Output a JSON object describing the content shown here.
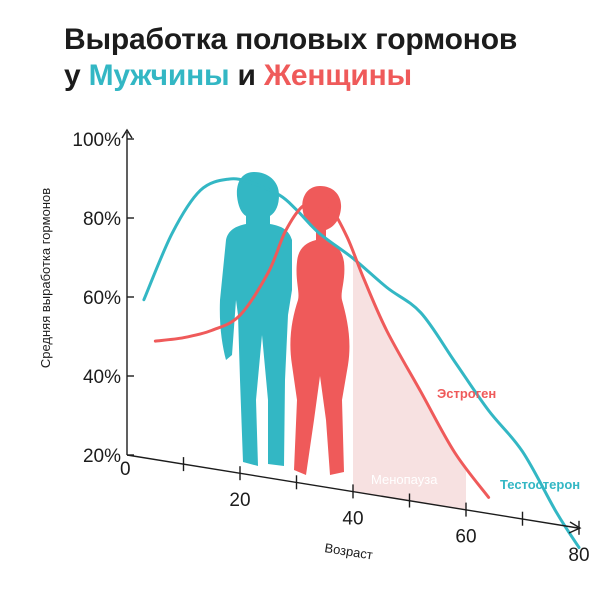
{
  "header": {
    "title_line1": "Выработка половых гормонов",
    "title_prefix": "у",
    "title_male": "Мужчины",
    "title_conj": "и",
    "title_female": "Женщины"
  },
  "colors": {
    "male": "#33b7c4",
    "female": "#ef5a5a",
    "menopause_fill": "#f6dede",
    "axis": "#1c1c1c"
  },
  "icons": [
    "male-silhouette-icon",
    "female-silhouette-icon"
  ],
  "chart_data": {
    "type": "line",
    "ylabel": "Средняя выработка гормонов",
    "xlabel": "Возраст",
    "y_ticks": [
      "20%",
      "40%",
      "60%",
      "80%",
      "100%"
    ],
    "y_tick_values": [
      20,
      40,
      60,
      80,
      100
    ],
    "x_ticks": [
      "20",
      "40",
      "60",
      "80"
    ],
    "x_tick_values": [
      20,
      40,
      60,
      80
    ],
    "origin_label": "0",
    "xlim": [
      0,
      80
    ],
    "ylim": [
      20,
      100
    ],
    "series": [
      {
        "name": "Тестостерон",
        "color": "#33b7c4",
        "x": [
          3,
          8,
          13,
          18,
          22,
          27,
          30,
          34,
          40,
          46,
          52,
          58,
          64,
          70,
          76,
          80
        ],
        "y": [
          60,
          78,
          90,
          94,
          94,
          92,
          89,
          84,
          79,
          73,
          68,
          57,
          46,
          37,
          23,
          15
        ]
      },
      {
        "name": "Эстроген",
        "color": "#ef5a5a",
        "x": [
          5,
          10,
          15,
          20,
          25,
          28,
          31,
          34,
          36,
          39,
          42,
          46,
          52,
          58,
          64
        ],
        "y": [
          50,
          52,
          55,
          60,
          72,
          83,
          90,
          92,
          91,
          84,
          74,
          62,
          48,
          34,
          24
        ]
      }
    ],
    "menopause_band": {
      "label": "Менопауза",
      "x_start": 40,
      "x_end": 60
    }
  }
}
